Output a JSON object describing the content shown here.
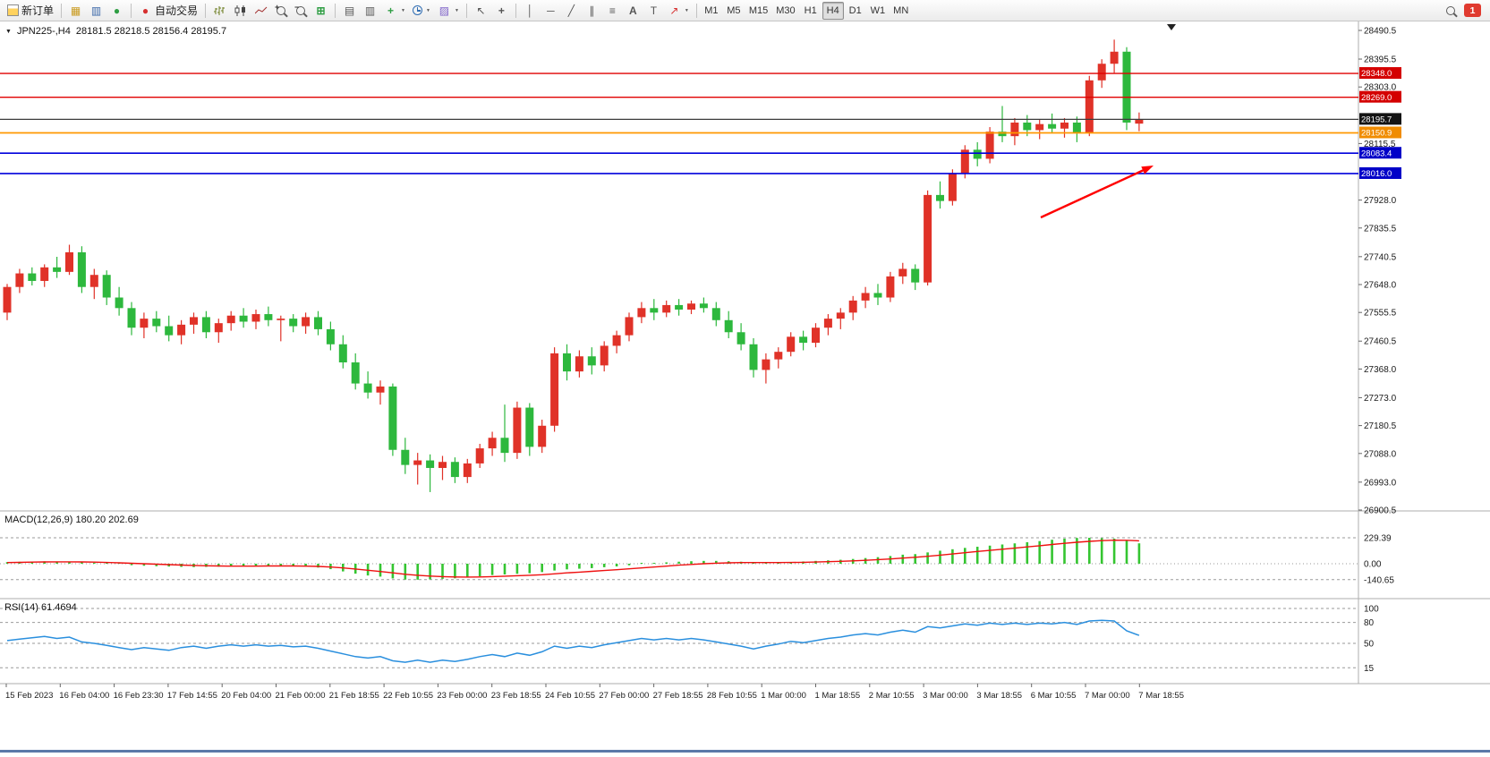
{
  "toolbar": {
    "new_order": "新订单",
    "auto_trading": "自动交易",
    "timeframes": [
      "M1",
      "M5",
      "M15",
      "M30",
      "H1",
      "H4",
      "D1",
      "W1",
      "MN"
    ],
    "active_timeframe": "H4",
    "notification_count": "1"
  },
  "icons": {
    "collapse": "▼",
    "caret": "▼",
    "new_chart": "▦",
    "market_watch": "▥",
    "navigator": "●",
    "auto_trading_dot": "●",
    "tile_windows": "⊞",
    "cascade_windows": "▤",
    "tile_charts": "▥",
    "indicators_plus": "+",
    "templates": "▨",
    "cursor": "↖",
    "crosshair": "+",
    "vline": "│",
    "hline": "─",
    "trendline": "╱",
    "channel": "∥",
    "fibonacci": "≡",
    "text_tool": "A",
    "label_tool": "T",
    "arrows_tool": "↗",
    "zoom_in_sign": "+",
    "zoom_out_sign": "−"
  },
  "chart_header": {
    "symbol": "JPN225-,H4",
    "ohlc": "28181.5 28218.5 28156.4 28195.7"
  },
  "indicators": {
    "macd_name": "MACD(12,26,9)",
    "macd_values": "180.20 202.69",
    "rsi_name": "RSI(14)",
    "rsi_value": "61.4694"
  },
  "annotation": {
    "arrow": {
      "from": [
        1163,
        243
      ],
      "to": [
        1289,
        185
      ],
      "color": "#ff0000"
    }
  },
  "chart_data": {
    "type": "candlestick",
    "symbol": "JPN225-",
    "timeframe": "H4",
    "price_range": [
      26900.5,
      28490.5
    ],
    "colors": {
      "up": "#e03228",
      "down": "#2db83d",
      "macd_hist": "#35c531",
      "macd_signal": "#ef1010",
      "rsi": "#2a8fde"
    },
    "levels": [
      {
        "price": 28348.0,
        "color": "#e10000",
        "label_bg": "#d40000",
        "width": 1.3
      },
      {
        "price": 28269.0,
        "color": "#e10000",
        "label_bg": "#d40000",
        "width": 1.3
      },
      {
        "price": 28195.7,
        "color": "#3c3c3c",
        "label_bg": "#141414",
        "width": 1.2
      },
      {
        "price": 28150.9,
        "color": "#ff9800",
        "label_bg": "#f08c00",
        "width": 1.8
      },
      {
        "price": 28083.4,
        "color": "#0000dc",
        "label_bg": "#0000c8",
        "width": 1.6
      },
      {
        "price": 28016.0,
        "color": "#0000dc",
        "label_bg": "#0000c8",
        "width": 1.6
      }
    ],
    "price_axis_labels": [
      28490.5,
      28395.5,
      28303.0,
      28115.5,
      27928.0,
      27835.5,
      27740.5,
      27648.0,
      27555.5,
      27460.5,
      27368.0,
      27273.0,
      27180.5,
      27088.0,
      26993.0,
      26900.5
    ],
    "time_labels": [
      "15 Feb 2023",
      "16 Feb 04:00",
      "16 Feb 23:30",
      "17 Feb 14:55",
      "20 Feb 04:00",
      "21 Feb 00:00",
      "21 Feb 18:55",
      "22 Feb 10:55",
      "23 Feb 00:00",
      "23 Feb 18:55",
      "24 Feb 10:55",
      "27 Feb 00:00",
      "27 Feb 18:55",
      "28 Feb 10:55",
      "1 Mar 00:00",
      "1 Mar 18:55",
      "2 Mar 10:55",
      "3 Mar 00:00",
      "3 Mar 18:55",
      "6 Mar 10:55",
      "7 Mar 00:00",
      "7 Mar 18:55"
    ],
    "candles": [
      [
        27555,
        27650,
        27530,
        27640
      ],
      [
        27640,
        27700,
        27620,
        27685
      ],
      [
        27685,
        27705,
        27645,
        27660
      ],
      [
        27660,
        27715,
        27640,
        27705
      ],
      [
        27705,
        27740,
        27670,
        27690
      ],
      [
        27690,
        27780,
        27680,
        27755
      ],
      [
        27755,
        27775,
        27620,
        27640
      ],
      [
        27640,
        27700,
        27600,
        27680
      ],
      [
        27680,
        27695,
        27580,
        27605
      ],
      [
        27605,
        27640,
        27545,
        27570
      ],
      [
        27570,
        27590,
        27480,
        27505
      ],
      [
        27505,
        27555,
        27470,
        27535
      ],
      [
        27535,
        27560,
        27490,
        27510
      ],
      [
        27510,
        27545,
        27460,
        27480
      ],
      [
        27480,
        27530,
        27450,
        27515
      ],
      [
        27515,
        27555,
        27485,
        27540
      ],
      [
        27540,
        27560,
        27470,
        27490
      ],
      [
        27490,
        27535,
        27455,
        27520
      ],
      [
        27520,
        27560,
        27495,
        27545
      ],
      [
        27545,
        27570,
        27505,
        27525
      ],
      [
        27525,
        27565,
        27500,
        27550
      ],
      [
        27550,
        27575,
        27510,
        27530
      ],
      [
        27530,
        27545,
        27460,
        27535
      ],
      [
        27535,
        27550,
        27490,
        27510
      ],
      [
        27510,
        27555,
        27485,
        27540
      ],
      [
        27540,
        27560,
        27480,
        27500
      ],
      [
        27500,
        27525,
        27430,
        27450
      ],
      [
        27450,
        27480,
        27370,
        27390
      ],
      [
        27390,
        27420,
        27300,
        27320
      ],
      [
        27320,
        27360,
        27270,
        27290
      ],
      [
        27290,
        27330,
        27250,
        27310
      ],
      [
        27310,
        27320,
        27080,
        27100
      ],
      [
        27100,
        27140,
        27020,
        27050
      ],
      [
        27050,
        27090,
        26985,
        27065
      ],
      [
        27065,
        27085,
        26960,
        27040
      ],
      [
        27040,
        27080,
        27000,
        27060
      ],
      [
        27060,
        27075,
        26990,
        27010
      ],
      [
        27010,
        27070,
        26990,
        27055
      ],
      [
        27055,
        27120,
        27040,
        27105
      ],
      [
        27105,
        27160,
        27080,
        27140
      ],
      [
        27140,
        27250,
        27060,
        27090
      ],
      [
        27090,
        27260,
        27070,
        27240
      ],
      [
        27240,
        27255,
        27080,
        27110
      ],
      [
        27110,
        27200,
        27090,
        27180
      ],
      [
        27180,
        27440,
        27160,
        27420
      ],
      [
        27420,
        27450,
        27330,
        27360
      ],
      [
        27360,
        27430,
        27340,
        27410
      ],
      [
        27410,
        27440,
        27350,
        27380
      ],
      [
        27380,
        27460,
        27360,
        27445
      ],
      [
        27445,
        27495,
        27420,
        27480
      ],
      [
        27480,
        27555,
        27460,
        27540
      ],
      [
        27540,
        27590,
        27520,
        27570
      ],
      [
        27570,
        27600,
        27530,
        27555
      ],
      [
        27555,
        27595,
        27540,
        27580
      ],
      [
        27580,
        27600,
        27545,
        27565
      ],
      [
        27565,
        27595,
        27550,
        27585
      ],
      [
        27585,
        27605,
        27555,
        27570
      ],
      [
        27570,
        27590,
        27510,
        27530
      ],
      [
        27530,
        27560,
        27470,
        27490
      ],
      [
        27490,
        27520,
        27430,
        27450
      ],
      [
        27450,
        27470,
        27340,
        27365
      ],
      [
        27365,
        27420,
        27320,
        27400
      ],
      [
        27400,
        27440,
        27370,
        27425
      ],
      [
        27425,
        27490,
        27410,
        27475
      ],
      [
        27475,
        27495,
        27430,
        27455
      ],
      [
        27455,
        27520,
        27440,
        27505
      ],
      [
        27505,
        27550,
        27480,
        27535
      ],
      [
        27535,
        27570,
        27500,
        27555
      ],
      [
        27555,
        27610,
        27530,
        27595
      ],
      [
        27595,
        27640,
        27570,
        27620
      ],
      [
        27620,
        27650,
        27580,
        27605
      ],
      [
        27605,
        27690,
        27590,
        27675
      ],
      [
        27675,
        27720,
        27650,
        27700
      ],
      [
        27700,
        27715,
        27630,
        27655
      ],
      [
        27655,
        27960,
        27645,
        27945
      ],
      [
        27945,
        27990,
        27900,
        27925
      ],
      [
        27925,
        28030,
        27910,
        28015
      ],
      [
        28015,
        28110,
        28000,
        28095
      ],
      [
        28095,
        28120,
        28040,
        28065
      ],
      [
        28065,
        28170,
        28050,
        28155
      ],
      [
        28155,
        28240,
        28120,
        28140
      ],
      [
        28140,
        28200,
        28110,
        28185
      ],
      [
        28185,
        28210,
        28140,
        28160
      ],
      [
        28160,
        28195,
        28130,
        28180
      ],
      [
        28180,
        28215,
        28150,
        28165
      ],
      [
        28165,
        28200,
        28135,
        28185
      ],
      [
        28185,
        28205,
        28120,
        28150
      ],
      [
        28150,
        28340,
        28140,
        28325
      ],
      [
        28325,
        28395,
        28300,
        28380
      ],
      [
        28380,
        28460,
        28350,
        28420
      ],
      [
        28420,
        28435,
        28160,
        28185
      ],
      [
        28181.5,
        28218.5,
        28156.4,
        28195.7
      ]
    ],
    "macd": {
      "params": "12,26,9",
      "current": [
        180.2,
        202.69
      ],
      "axis_levels": [
        229.39,
        0,
        -140.65
      ],
      "histogram": [
        14,
        17,
        19,
        21,
        20,
        18,
        13,
        6,
        0,
        -6,
        -13,
        -18,
        -22,
        -25,
        -28,
        -30,
        -28,
        -26,
        -24,
        -22,
        -20,
        -19,
        -18,
        -20,
        -25,
        -34,
        -48,
        -68,
        -88,
        -104,
        -114,
        -130,
        -140,
        -141,
        -138,
        -134,
        -129,
        -121,
        -111,
        -100,
        -95,
        -89,
        -84,
        -74,
        -60,
        -50,
        -44,
        -39,
        -31,
        -24,
        -14,
        -4,
        5,
        12,
        18,
        22,
        25,
        25,
        22,
        18,
        12,
        8,
        10,
        15,
        20,
        25,
        30,
        35,
        42,
        50,
        58,
        68,
        80,
        85,
        100,
        115,
        128,
        140,
        150,
        160,
        170,
        180,
        190,
        200,
        212,
        222,
        228,
        229.39,
        226,
        222,
        205,
        180.2
      ],
      "signal": [
        10,
        12,
        14,
        16,
        17,
        17,
        16,
        14,
        11,
        8,
        4,
        0,
        -4,
        -8,
        -12,
        -15,
        -18,
        -20,
        -21,
        -21,
        -21,
        -20,
        -20,
        -20,
        -21,
        -24,
        -29,
        -37,
        -47,
        -58,
        -69,
        -81,
        -93,
        -102,
        -109,
        -114,
        -117,
        -118,
        -117,
        -114,
        -110,
        -106,
        -102,
        -97,
        -89,
        -81,
        -74,
        -67,
        -60,
        -53,
        -45,
        -37,
        -29,
        -21,
        -13,
        -6,
        0,
        5,
        8,
        10,
        10,
        10,
        10,
        11,
        13,
        15,
        18,
        21,
        25,
        30,
        36,
        42,
        50,
        57,
        66,
        76,
        86,
        97,
        108,
        118,
        128,
        138,
        149,
        159,
        170,
        180,
        190,
        198,
        204,
        208,
        207,
        202.69
      ]
    },
    "rsi": {
      "period": 14,
      "current": 61.4694,
      "axis_levels": [
        100,
        80,
        50,
        15
      ],
      "values": [
        54,
        56,
        58,
        60,
        57,
        59,
        52,
        50,
        47,
        44,
        41,
        44,
        42,
        40,
        44,
        46,
        43,
        46,
        48,
        46,
        48,
        46,
        47,
        45,
        46,
        43,
        39,
        35,
        31,
        29,
        31,
        25,
        23,
        26,
        23,
        26,
        24,
        27,
        31,
        34,
        31,
        36,
        33,
        38,
        46,
        43,
        46,
        44,
        48,
        51,
        54,
        57,
        55,
        57,
        55,
        57,
        55,
        52,
        49,
        46,
        42,
        46,
        49,
        53,
        51,
        54,
        57,
        59,
        62,
        64,
        62,
        66,
        69,
        66,
        74,
        72,
        75,
        78,
        76,
        79,
        77,
        79,
        77,
        79,
        78,
        80,
        77,
        82,
        83,
        82,
        68,
        61.47
      ]
    }
  }
}
